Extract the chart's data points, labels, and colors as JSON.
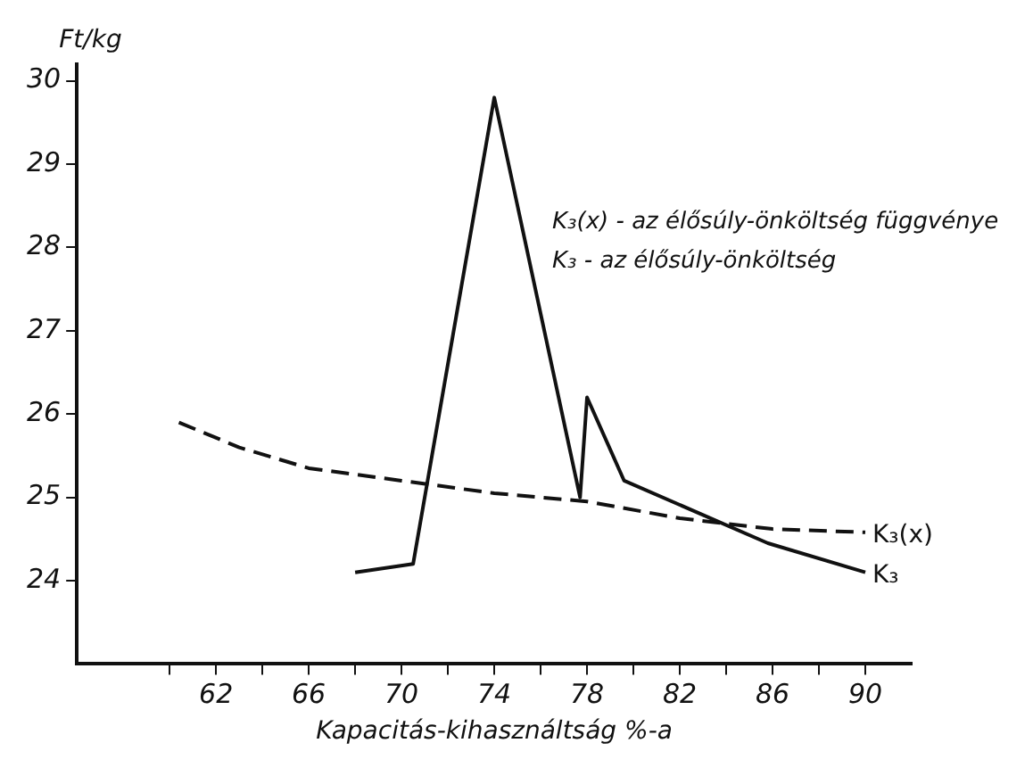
{
  "chart_data": {
    "type": "line",
    "xlabel": "Kapacitás-kihasználtság %-a",
    "ylabel": "Ft/kg",
    "annotations": [
      "K₃(x) - az élősúly-önköltség függvénye",
      "K₃ - az élősúly-önköltség"
    ],
    "xlim": [
      56,
      92
    ],
    "ylim": [
      23,
      30.2
    ],
    "xticks": [
      {
        "value": 60,
        "label": null
      },
      62,
      {
        "value": 64,
        "label": null
      },
      66,
      {
        "value": 68,
        "label": null
      },
      70,
      {
        "value": 72,
        "label": null
      },
      74,
      {
        "value": 76,
        "label": null
      },
      78,
      {
        "value": 80,
        "label": null
      },
      82,
      {
        "value": 84,
        "label": null
      },
      86,
      {
        "value": 88,
        "label": null
      },
      90
    ],
    "yticks": [
      24,
      25,
      26,
      27,
      28,
      29,
      30
    ],
    "grid": false,
    "legend": false,
    "marker": "none",
    "series": [
      {
        "name": "K₃(x)",
        "color": "#111111",
        "line_style": "dashed",
        "x": [
          60.4,
          63,
          66,
          70,
          74,
          78,
          82,
          86,
          90
        ],
        "values": [
          25.9,
          25.6,
          25.35,
          25.2,
          25.05,
          24.95,
          24.75,
          24.62,
          24.58
        ]
      },
      {
        "name": "K₃",
        "color": "#111111",
        "line_style": "solid",
        "x": [
          68,
          70.5,
          74,
          77.7,
          78,
          79.6,
          85.8,
          90
        ],
        "values": [
          24.1,
          24.2,
          29.8,
          25.0,
          26.2,
          25.2,
          24.45,
          24.1
        ]
      }
    ]
  }
}
